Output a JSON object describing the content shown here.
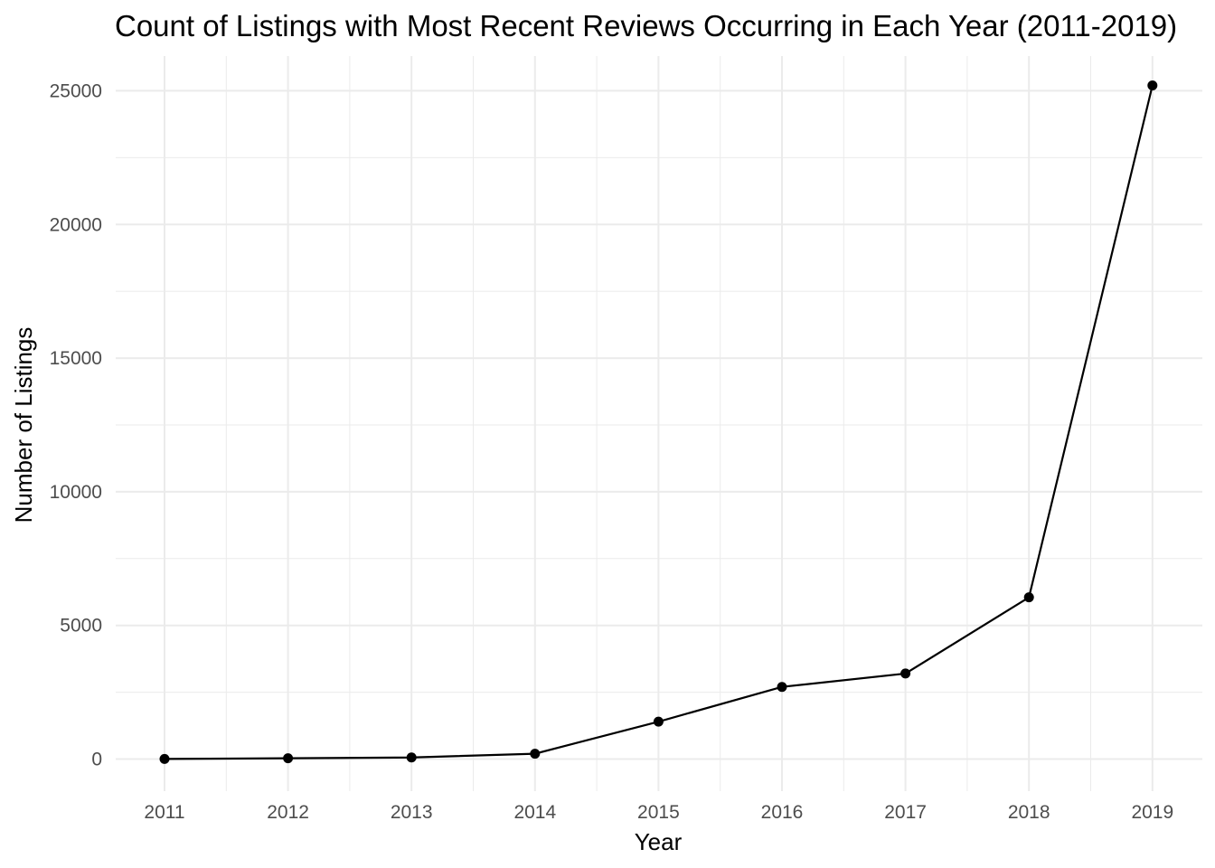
{
  "chart_data": {
    "type": "line",
    "title": "Count of Listings with Most Recent Reviews Occurring in Each Year (2011-2019)",
    "xlabel": "Year",
    "ylabel": "Number of Listings",
    "x": [
      "2011",
      "2012",
      "2013",
      "2014",
      "2015",
      "2016",
      "2017",
      "2018",
      "2019"
    ],
    "series": [
      {
        "values": [
          5,
          30,
          60,
          200,
          1400,
          2700,
          3200,
          6050,
          25200
        ]
      }
    ],
    "y_ticks": [
      "0",
      "5000",
      "10000",
      "15000",
      "20000",
      "25000"
    ],
    "ylim": [
      -1200,
      26300
    ],
    "grid": true,
    "legend": "none",
    "colors": {
      "line": "#000000",
      "grid": "#ebebeb",
      "background": "#ffffff"
    }
  }
}
